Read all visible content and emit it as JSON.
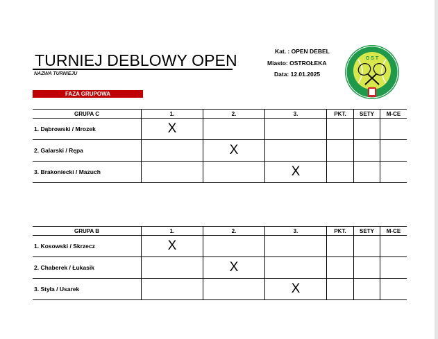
{
  "header": {
    "title": "TURNIEJ DEBLOWY OPEN",
    "subtitle": "NAZWA TURNIEJU",
    "phase": "FAZA GRUPOWA",
    "category": "Kat. : OPEN DEBEL",
    "city": "Miasto: OSTROŁEKA",
    "date": "Data: 12.01.2025"
  },
  "logo": {
    "text": "OSTROŁECKIE STOWARZYSZENIE TENISOWE",
    "abbr": "OST",
    "colors": {
      "ring": "#1f9a4a",
      "ball": "#d8e84a",
      "crest": "#d0202a"
    }
  },
  "colors": {
    "phase_bg": "#c00000"
  },
  "groups": [
    {
      "headers": [
        "GRUPA C",
        "1.",
        "2.",
        "3.",
        "PKT.",
        "SETY",
        "M-CE"
      ],
      "rows": [
        {
          "name": "1. Dąbrowski / Mrozek",
          "cells": [
            "X",
            "",
            "",
            "",
            "",
            ""
          ]
        },
        {
          "name": "2. Galarski / Rępa",
          "cells": [
            "",
            "X",
            "",
            "",
            "",
            ""
          ]
        },
        {
          "name": "3. Brakoniecki / Mazuch",
          "cells": [
            "",
            "",
            "X",
            "",
            "",
            ""
          ]
        }
      ]
    },
    {
      "headers": [
        "GRUPA B",
        "1.",
        "2.",
        "3.",
        "PKT.",
        "SETY",
        "M-CE"
      ],
      "rows": [
        {
          "name": "1. Kosowski / Skrzecz",
          "cells": [
            "X",
            "",
            "",
            "",
            "",
            ""
          ]
        },
        {
          "name": "2. Chaberek / Łukasik",
          "cells": [
            "",
            "X",
            "",
            "",
            "",
            ""
          ]
        },
        {
          "name": "3. Styła / Usarek",
          "cells": [
            "",
            "",
            "X",
            "",
            "",
            ""
          ]
        }
      ]
    }
  ]
}
